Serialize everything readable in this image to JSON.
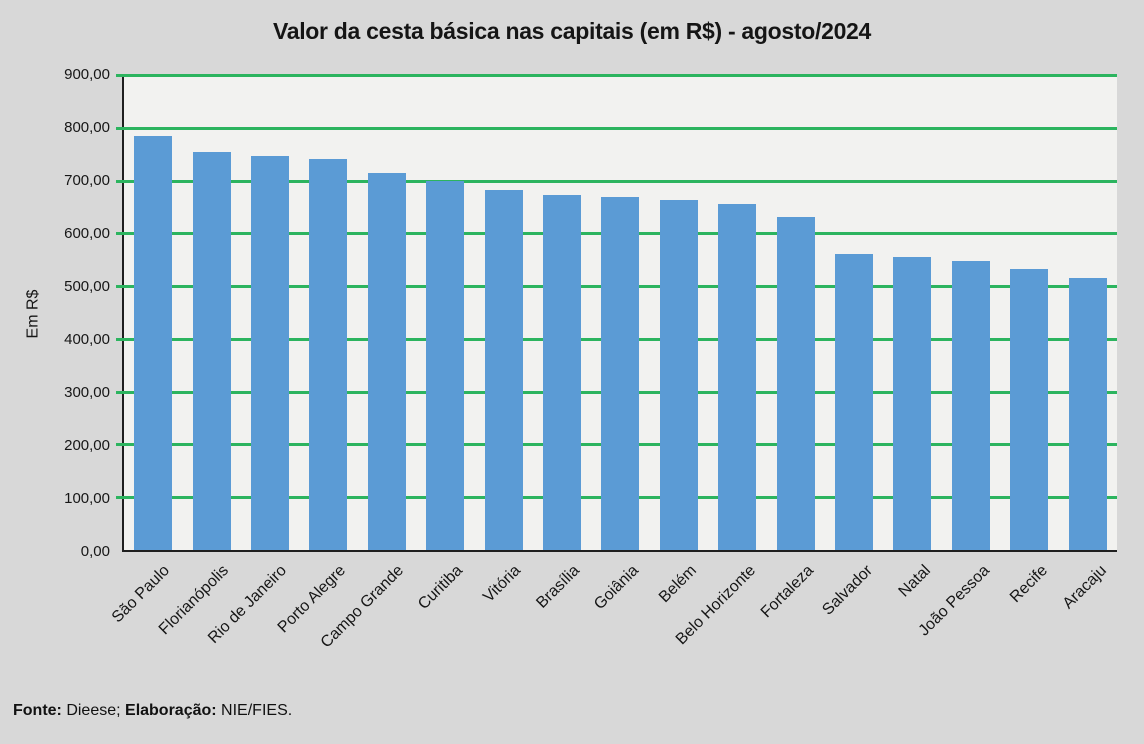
{
  "title": "Valor da cesta básica nas capitais (em R$) - agosto/2024",
  "chart_data": {
    "type": "bar",
    "title": "Valor da cesta básica nas capitais (em R$) - agosto/2024",
    "categories": [
      "São Paulo",
      "Florianópolis",
      "Rio de Janeiro",
      "Porto Alegre",
      "Campo Grande",
      "Curitiba",
      "Vitória",
      "Brasília",
      "Goiânia",
      "Belém",
      "Belo Horizonte",
      "Fortaleza",
      "Salvador",
      "Natal",
      "João Pessoa",
      "Recife",
      "Aracaju"
    ],
    "values": [
      785,
      755,
      746,
      740,
      714,
      700,
      683,
      672,
      668,
      664,
      656,
      631,
      560,
      555,
      548,
      533,
      516
    ],
    "xlabel": "",
    "ylabel": "Em R$",
    "ylim": [
      0,
      900
    ],
    "ytick_step": 100,
    "yticks": [
      "0,00",
      "100,00",
      "200,00",
      "300,00",
      "400,00",
      "500,00",
      "600,00",
      "700,00",
      "800,00",
      "900,00"
    ],
    "grid": true,
    "legend_position": "none",
    "bar_color": "#5B9BD5",
    "gridline_color": "#2CB45F",
    "plot_background": "#F2F2F0",
    "page_background": "#D8D8D8"
  },
  "footer": {
    "source_label": "Fonte:",
    "source_value": " Dieese; ",
    "elaboration_label": "Elaboração:",
    "elaboration_value": " NIE/FIES."
  }
}
